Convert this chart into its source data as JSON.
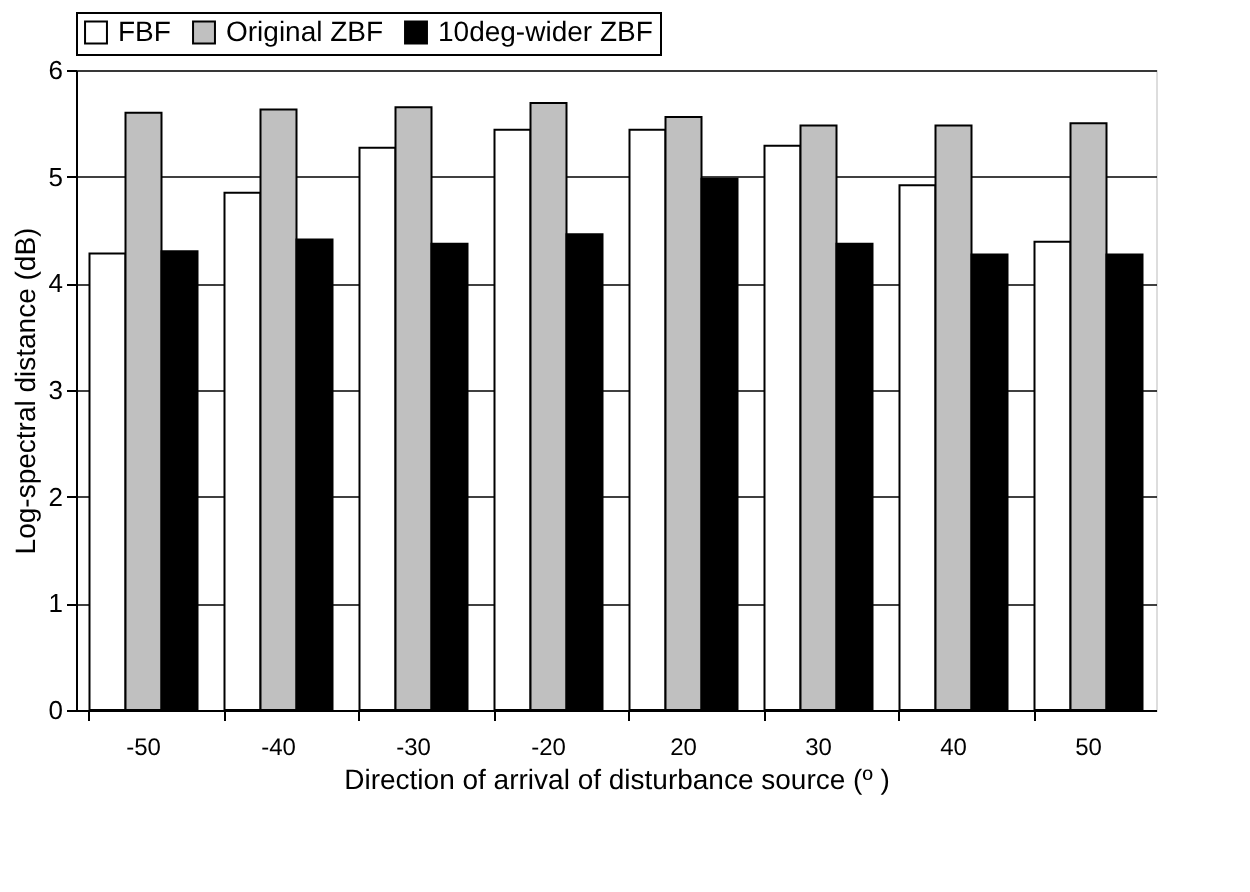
{
  "chart_data": {
    "type": "bar",
    "xlabel": "Direction of arrival of disturbance source (º )",
    "ylabel": "Log-spectral distance (dB)",
    "categories": [
      "-50",
      "-40",
      "-30",
      "-20",
      "20",
      "30",
      "40",
      "50"
    ],
    "series": [
      {
        "name": "FBF",
        "color": "#ffffff",
        "values": [
          4.28,
          4.85,
          5.27,
          5.44,
          5.44,
          5.29,
          4.92,
          4.39
        ]
      },
      {
        "name": "Original ZBF",
        "color": "#c0c0c0",
        "values": [
          5.6,
          5.63,
          5.65,
          5.69,
          5.56,
          5.48,
          5.48,
          5.5
        ]
      },
      {
        "name": "10deg-wider ZBF",
        "color": "#000000",
        "values": [
          4.3,
          4.41,
          4.37,
          4.46,
          4.98,
          4.37,
          4.27,
          4.27
        ]
      }
    ],
    "ylim": [
      0,
      6
    ],
    "yticks": [
      0,
      1,
      2,
      3,
      4,
      5,
      6
    ],
    "grid": "y",
    "legend": "top"
  }
}
